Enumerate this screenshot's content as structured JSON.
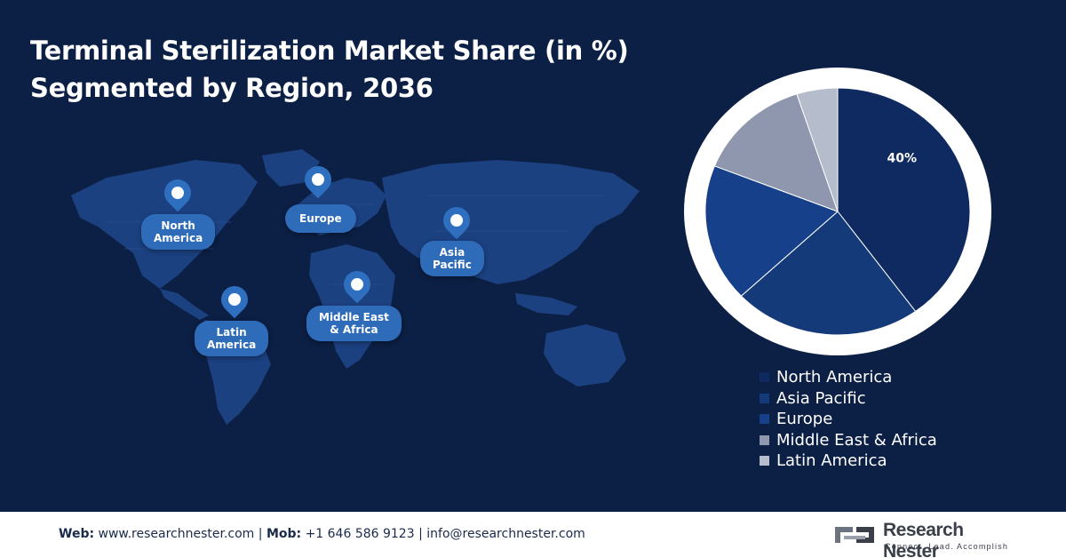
{
  "title_line1": "Terminal Sterilization Market Share (in %)",
  "title_line2": "Segmented by Region, 2036",
  "map_labels": {
    "north_america": [
      "North",
      "America"
    ],
    "europe": [
      "Europe"
    ],
    "asia_pacific": [
      "Asia",
      "Pacific"
    ],
    "latin_america": [
      "Latin",
      "America"
    ],
    "middle_east_africa": [
      "Middle East",
      "& Africa"
    ]
  },
  "chart_data": {
    "type": "pie",
    "title": "Terminal Sterilization Market Share (in %) Segmented by Region, 2036",
    "categories": [
      "North America",
      "Asia Pacific",
      "Europe",
      "Middle East & Africa",
      "Latin America"
    ],
    "values": [
      40,
      23,
      18,
      14,
      5
    ],
    "data_labels": [
      "40%",
      "",
      "",
      "",
      ""
    ],
    "colors": [
      "#0f2a60",
      "#153a7a",
      "#17408a",
      "#8e97ae",
      "#b5bccb"
    ],
    "legend_position": "bottom"
  },
  "footer": {
    "web_label": "Web:",
    "web_value": "www.researchnester.com",
    "mob_label": "Mob:",
    "mob_value": "+1 646 586 9123",
    "email": "info@researchnester.com",
    "separator": "|"
  },
  "logo": {
    "name": "Research Nester",
    "tagline": "Connect. Lead. Accomplish"
  }
}
